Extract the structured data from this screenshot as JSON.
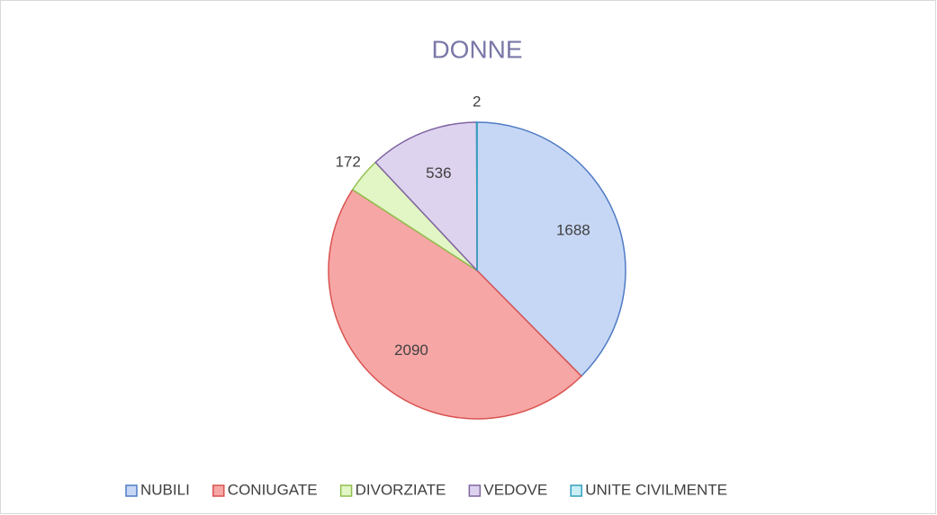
{
  "chart_data": {
    "type": "pie",
    "title": "DONNE",
    "categories": [
      "NUBILI",
      "CONIUGATE",
      "DIVORZIATE",
      "VEDOVE",
      "UNITE CIVILMENTE"
    ],
    "values": [
      1688,
      2090,
      172,
      536,
      2
    ],
    "colors": [
      "#c6d7f5",
      "#f7a6a6",
      "#e2f5c4",
      "#ddd3ee",
      "#c9eef6"
    ],
    "edgecolors": [
      "#4f7bc4",
      "#d9534f",
      "#8fbf4f",
      "#8064a2",
      "#31a0bc"
    ],
    "legend": "bottom"
  }
}
